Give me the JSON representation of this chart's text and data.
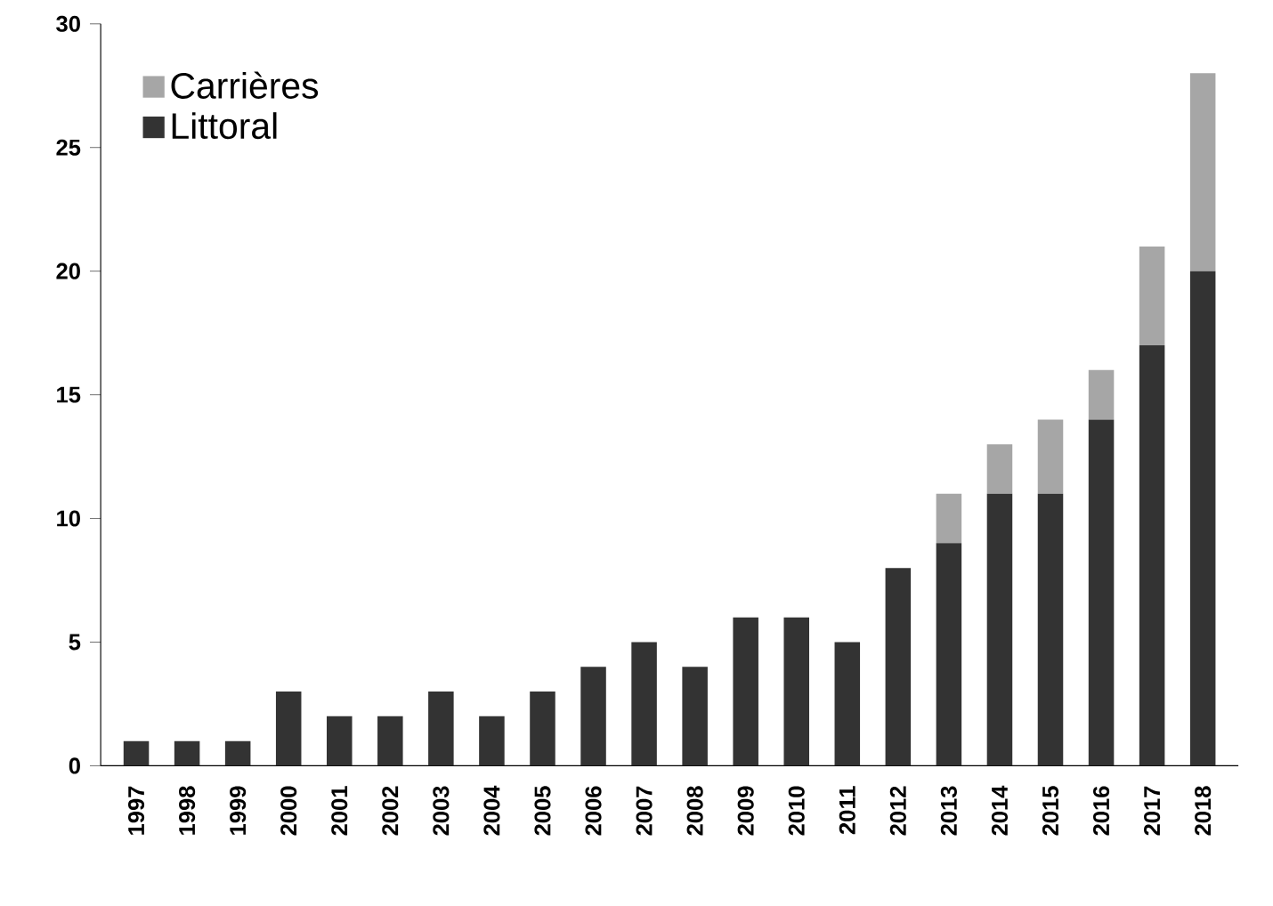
{
  "chart_data": {
    "type": "bar",
    "stacked": true,
    "categories": [
      "1997",
      "1998",
      "1999",
      "2000",
      "2001",
      "2002",
      "2003",
      "2004",
      "2005",
      "2006",
      "2007",
      "2008",
      "2009",
      "2010",
      "2011",
      "2012",
      "2013",
      "2014",
      "2015",
      "2016",
      "2017",
      "2018"
    ],
    "series": [
      {
        "name": "Littoral",
        "color": "#333333",
        "values": [
          1,
          1,
          1,
          3,
          2,
          2,
          3,
          2,
          3,
          4,
          5,
          4,
          6,
          6,
          5,
          8,
          9,
          11,
          11,
          14,
          17,
          20
        ]
      },
      {
        "name": "Carrières",
        "color": "#a6a6a6",
        "values": [
          0,
          0,
          0,
          0,
          0,
          0,
          0,
          0,
          0,
          0,
          0,
          0,
          0,
          0,
          0,
          0,
          2,
          2,
          3,
          2,
          4,
          8
        ]
      }
    ],
    "ylim": [
      0,
      30
    ],
    "yticks": [
      0,
      5,
      10,
      15,
      20,
      25,
      30
    ],
    "legend": "top left"
  }
}
